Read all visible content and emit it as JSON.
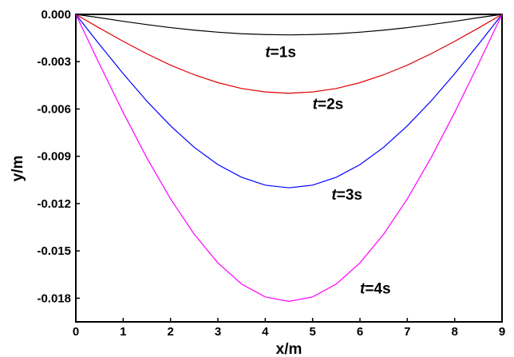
{
  "chart_data": {
    "type": "line",
    "title": "",
    "xlabel": "x/m",
    "ylabel": "y/m",
    "xlim": [
      0,
      9
    ],
    "ylim": [
      -0.0195,
      0
    ],
    "x_ticks": [
      0,
      1,
      2,
      3,
      4,
      5,
      6,
      7,
      8,
      9
    ],
    "x_tick_labels": [
      "0",
      "1",
      "2",
      "3",
      "4",
      "5",
      "6",
      "7",
      "8",
      "9"
    ],
    "y_ticks": [
      0,
      -0.003,
      -0.006,
      -0.009,
      -0.012,
      -0.015,
      -0.018
    ],
    "y_tick_labels": [
      "0.000",
      "-0.003",
      "-0.006",
      "-0.009",
      "-0.012",
      "-0.015",
      "-0.018"
    ],
    "grid": false,
    "legend": "none",
    "series": [
      {
        "label_prefix": "t",
        "label_suffix": "=1s",
        "color": "#000000",
        "x": [
          0,
          0.5,
          1,
          1.5,
          2,
          2.5,
          3,
          3.5,
          4,
          4.5,
          5,
          5.5,
          6,
          6.5,
          7,
          7.5,
          8,
          8.5,
          9
        ],
        "y": [
          0,
          -0.00021,
          -0.00044,
          -0.00065,
          -0.00084,
          -0.001,
          -0.00113,
          -0.00123,
          -0.00128,
          -0.0013,
          -0.00128,
          -0.00123,
          -0.00113,
          -0.001,
          -0.00084,
          -0.00065,
          -0.00044,
          -0.00021,
          0
        ]
      },
      {
        "label_prefix": "t",
        "label_suffix": "=2s",
        "color": "#e00000",
        "x": [
          0,
          0.5,
          1,
          1.5,
          2,
          2.5,
          3,
          3.5,
          4,
          4.5,
          5,
          5.5,
          6,
          6.5,
          7,
          7.5,
          8,
          8.5,
          9
        ],
        "y": [
          0,
          -0.00087,
          -0.00171,
          -0.0025,
          -0.00322,
          -0.00383,
          -0.00433,
          -0.0047,
          -0.00492,
          -0.005,
          -0.00492,
          -0.0047,
          -0.00433,
          -0.00383,
          -0.00322,
          -0.0025,
          -0.00171,
          -0.00087,
          0
        ]
      },
      {
        "label_prefix": "t",
        "label_suffix": "=3s",
        "color": "#0000ff",
        "x": [
          0,
          0.5,
          1,
          1.5,
          2,
          2.5,
          3,
          3.5,
          4,
          4.5,
          5,
          5.5,
          6,
          6.5,
          7,
          7.5,
          8,
          8.5,
          9
        ],
        "y": [
          0,
          -0.00191,
          -0.00376,
          -0.0055,
          -0.00707,
          -0.00843,
          -0.00953,
          -0.01033,
          -0.01083,
          -0.011,
          -0.01083,
          -0.01033,
          -0.00953,
          -0.00843,
          -0.00707,
          -0.0055,
          -0.00376,
          -0.00191,
          0
        ]
      },
      {
        "label_prefix": "t",
        "label_suffix": "=4s",
        "color": "#ff00ff",
        "x": [
          0,
          0.5,
          1,
          1.5,
          2,
          2.5,
          3,
          3.5,
          4,
          4.5,
          5,
          5.5,
          6,
          6.5,
          7,
          7.5,
          8,
          8.5,
          9
        ],
        "y": [
          0,
          -0.00316,
          -0.00622,
          -0.0091,
          -0.0117,
          -0.01394,
          -0.01576,
          -0.0171,
          -0.01792,
          -0.0182,
          -0.01792,
          -0.0171,
          -0.01576,
          -0.01394,
          -0.0117,
          -0.0091,
          -0.00622,
          -0.00316,
          0
        ]
      }
    ]
  }
}
